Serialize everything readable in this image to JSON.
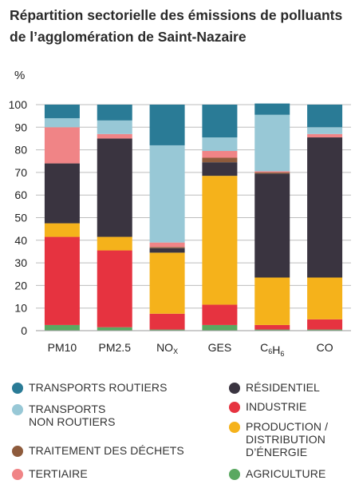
{
  "title": "Répartition sectorielle des émissions de polluants de l’agglomération de Saint-Nazaire",
  "chart_data": {
    "type": "bar",
    "stacked": true,
    "title": "Répartition sectorielle des émissions de polluants de l’agglomération de Saint-Nazaire",
    "ylabel": "%",
    "ylim": [
      0,
      100
    ],
    "yticks": [
      0,
      10,
      20,
      30,
      40,
      50,
      60,
      70,
      80,
      90,
      100
    ],
    "grid": true,
    "categories": [
      {
        "label": "PM10"
      },
      {
        "label": "PM2.5"
      },
      {
        "label": "NO",
        "sub": "X"
      },
      {
        "label": "GES"
      },
      {
        "label": "C",
        "sub": "6",
        "label2": "H",
        "sub2": "6"
      },
      {
        "label": "CO"
      }
    ],
    "series": [
      {
        "name": "AGRICULTURE",
        "color": "#5aa861",
        "values": [
          2.5,
          1.5,
          0.5,
          2.5,
          0.5,
          0.5
        ]
      },
      {
        "name": "INDUSTRIE",
        "color": "#e63340",
        "values": [
          39,
          34,
          7,
          9,
          2,
          4.5
        ]
      },
      {
        "name": "PRODUCTION / DISTRIBUTION D’ÉNERGIE",
        "color": "#f5b21b",
        "values": [
          6,
          6,
          27,
          57,
          21,
          18.5
        ]
      },
      {
        "name": "RÉSIDENTIEL",
        "color": "#3a3440",
        "values": [
          26.5,
          43.5,
          2,
          6,
          46,
          62
        ]
      },
      {
        "name": "TRAITEMENT DES DÉCHETS",
        "color": "#8e5b3c",
        "values": [
          0,
          0,
          0.5,
          2,
          0.5,
          0
        ]
      },
      {
        "name": "TERTIAIRE",
        "color": "#f08486",
        "values": [
          16,
          2,
          2,
          3,
          0.5,
          1.5
        ]
      },
      {
        "name": "TRANSPORTS NON ROUTIERS",
        "color": "#98c8d6",
        "values": [
          4,
          6,
          43,
          6,
          25,
          3
        ]
      },
      {
        "name": "TRANSPORTS ROUTIERS",
        "color": "#2a7b96",
        "values": [
          6,
          7,
          18,
          14.5,
          5,
          10
        ]
      }
    ],
    "legend": {
      "left": [
        {
          "name": "TRANSPORTS ROUTIERS",
          "color": "#2a7b96"
        },
        {
          "name": "TRANSPORTS\nNON ROUTIERS",
          "color": "#98c8d6"
        },
        {
          "name": "TRAITEMENT DES DÉCHETS",
          "color": "#8e5b3c"
        },
        {
          "name": "TERTIAIRE",
          "color": "#f08486"
        }
      ],
      "right": [
        {
          "name": "RÉSIDENTIEL",
          "color": "#3a3440"
        },
        {
          "name": "INDUSTRIE",
          "color": "#e63340"
        },
        {
          "name": "PRODUCTION /\nDISTRIBUTION\nD’ÉNERGIE",
          "color": "#f5b21b"
        },
        {
          "name": "AGRICULTURE",
          "color": "#5aa861"
        }
      ]
    }
  }
}
